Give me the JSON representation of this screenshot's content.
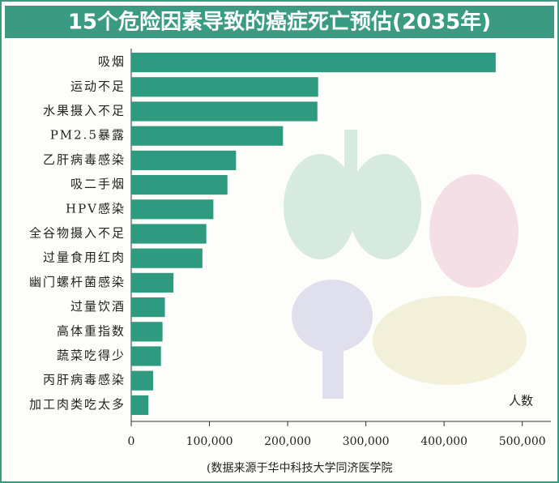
{
  "chart_data": {
    "type": "barh",
    "title": "15个危险因素导致的癌症死亡预估(2035年)",
    "x_label": "人数",
    "source": "(数据来源于华中科技大学同济医学院",
    "categories": [
      "吸烟",
      "运动不足",
      "水果摄入不足",
      "PM2.5暴露",
      "乙肝病毒感染",
      "吸二手烟",
      "HPV感染",
      "全谷物摄入不足",
      "过量食用红肉",
      "幽门螺杆菌感染",
      "过量饮酒",
      "高体重指数",
      "蔬菜吃得少",
      "丙肝病毒感染",
      "加工肉类吃太多"
    ],
    "values": [
      466000,
      239000,
      238000,
      194000,
      134000,
      123000,
      105000,
      96000,
      91000,
      54000,
      43000,
      40000,
      38000,
      28000,
      22000
    ],
    "color": "#2e9a80",
    "xlim": [
      0,
      520000
    ],
    "xticks": [
      0,
      {
        "value": 100000,
        "label": "100,000"
      },
      {
        "value": 200000,
        "label": "200,000"
      },
      {
        "value": 300000,
        "label": "300,000"
      },
      {
        "value": 400000,
        "label": "400,000"
      },
      {
        "value": 500000,
        "label": "500,000"
      }
    ]
  }
}
